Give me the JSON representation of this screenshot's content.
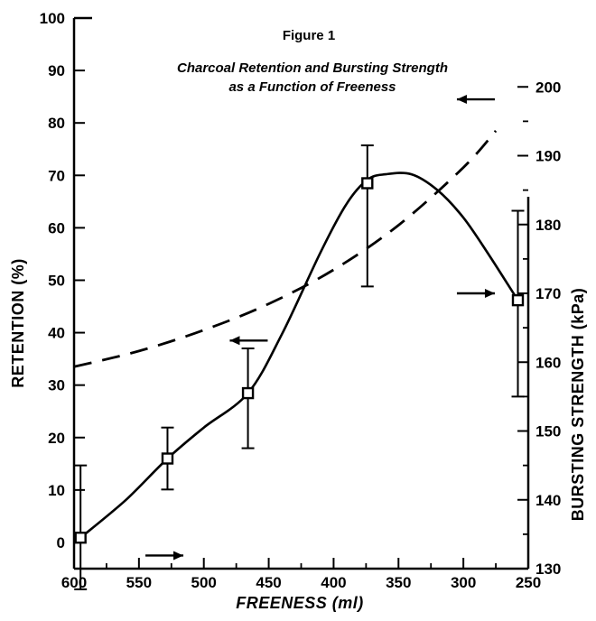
{
  "chart_data": {
    "type": "line",
    "title": "Figure 1",
    "subtitle_lines": [
      "Charcoal Retention and Bursting Strength",
      "as a Function of Freeness"
    ],
    "xlabel": "FREENESS (ml)",
    "ylabel_left": "RETENTION (%)",
    "ylabel_right": "BURSTING STRENGTH (kPa)",
    "xlim": [
      600,
      250
    ],
    "ylim_left": [
      -5,
      100
    ],
    "ylim_right": [
      130,
      210
    ],
    "x_ticks": [
      "600",
      "550",
      "500",
      "450",
      "400",
      "350",
      "300",
      "250"
    ],
    "x_tick_values": [
      600,
      550,
      500,
      450,
      400,
      350,
      300,
      250
    ],
    "y_ticks_left": [
      "0",
      "10",
      "20",
      "30",
      "40",
      "50",
      "60",
      "70",
      "80",
      "90",
      "100"
    ],
    "y_tick_values_left": [
      0,
      10,
      20,
      30,
      40,
      50,
      60,
      70,
      80,
      90,
      100
    ],
    "y_ticks_right": [
      "130",
      "140",
      "150",
      "160",
      "170",
      "180",
      "190",
      "200"
    ],
    "y_tick_values_right": [
      130,
      140,
      150,
      160,
      170,
      180,
      190,
      200
    ],
    "grid": false,
    "series": [
      {
        "axis": "left",
        "style": "dashed",
        "x": [
          600,
          550,
          500,
          450,
          400,
          350,
          300,
          275
        ],
        "y": [
          33.5,
          36.5,
          40.5,
          45.5,
          52,
          60.5,
          71.5,
          78.5
        ]
      },
      {
        "axis": "right",
        "style": "solid",
        "x": [
          595,
          528,
          466,
          374,
          258
        ],
        "y": [
          134.5,
          146,
          155.5,
          186,
          169
        ],
        "error_low": [
          127,
          141.5,
          147.5,
          171,
          155
        ],
        "error_high": [
          145,
          150.5,
          162,
          191.5,
          182
        ],
        "curve_x": [
          595,
          560,
          528,
          500,
          466,
          440,
          410,
          390,
          374,
          360,
          340,
          320,
          300,
          280,
          258
        ],
        "curve_y": [
          134.5,
          140,
          146,
          150.5,
          155.5,
          164,
          176,
          183,
          186.5,
          187.3,
          187.3,
          185,
          181,
          175.5,
          169
        ]
      }
    ],
    "annotations": [
      {
        "text": "←",
        "meaning": "retention curve uses left axis",
        "x": 480,
        "y": 38.5,
        "direction": "left"
      },
      {
        "text": "←",
        "meaning": "retention curve uses left axis",
        "x": 305,
        "y": 84.5,
        "direction": "left"
      },
      {
        "text": "→",
        "meaning": "bursting strength curve uses right axis",
        "x": 545,
        "y": -2.5,
        "direction": "right"
      },
      {
        "text": "→",
        "meaning": "bursting strength curve uses right axis",
        "x": 305,
        "y": 47.5,
        "direction": "right"
      }
    ],
    "colors": {
      "ink": "#000000",
      "background": "#ffffff"
    }
  }
}
